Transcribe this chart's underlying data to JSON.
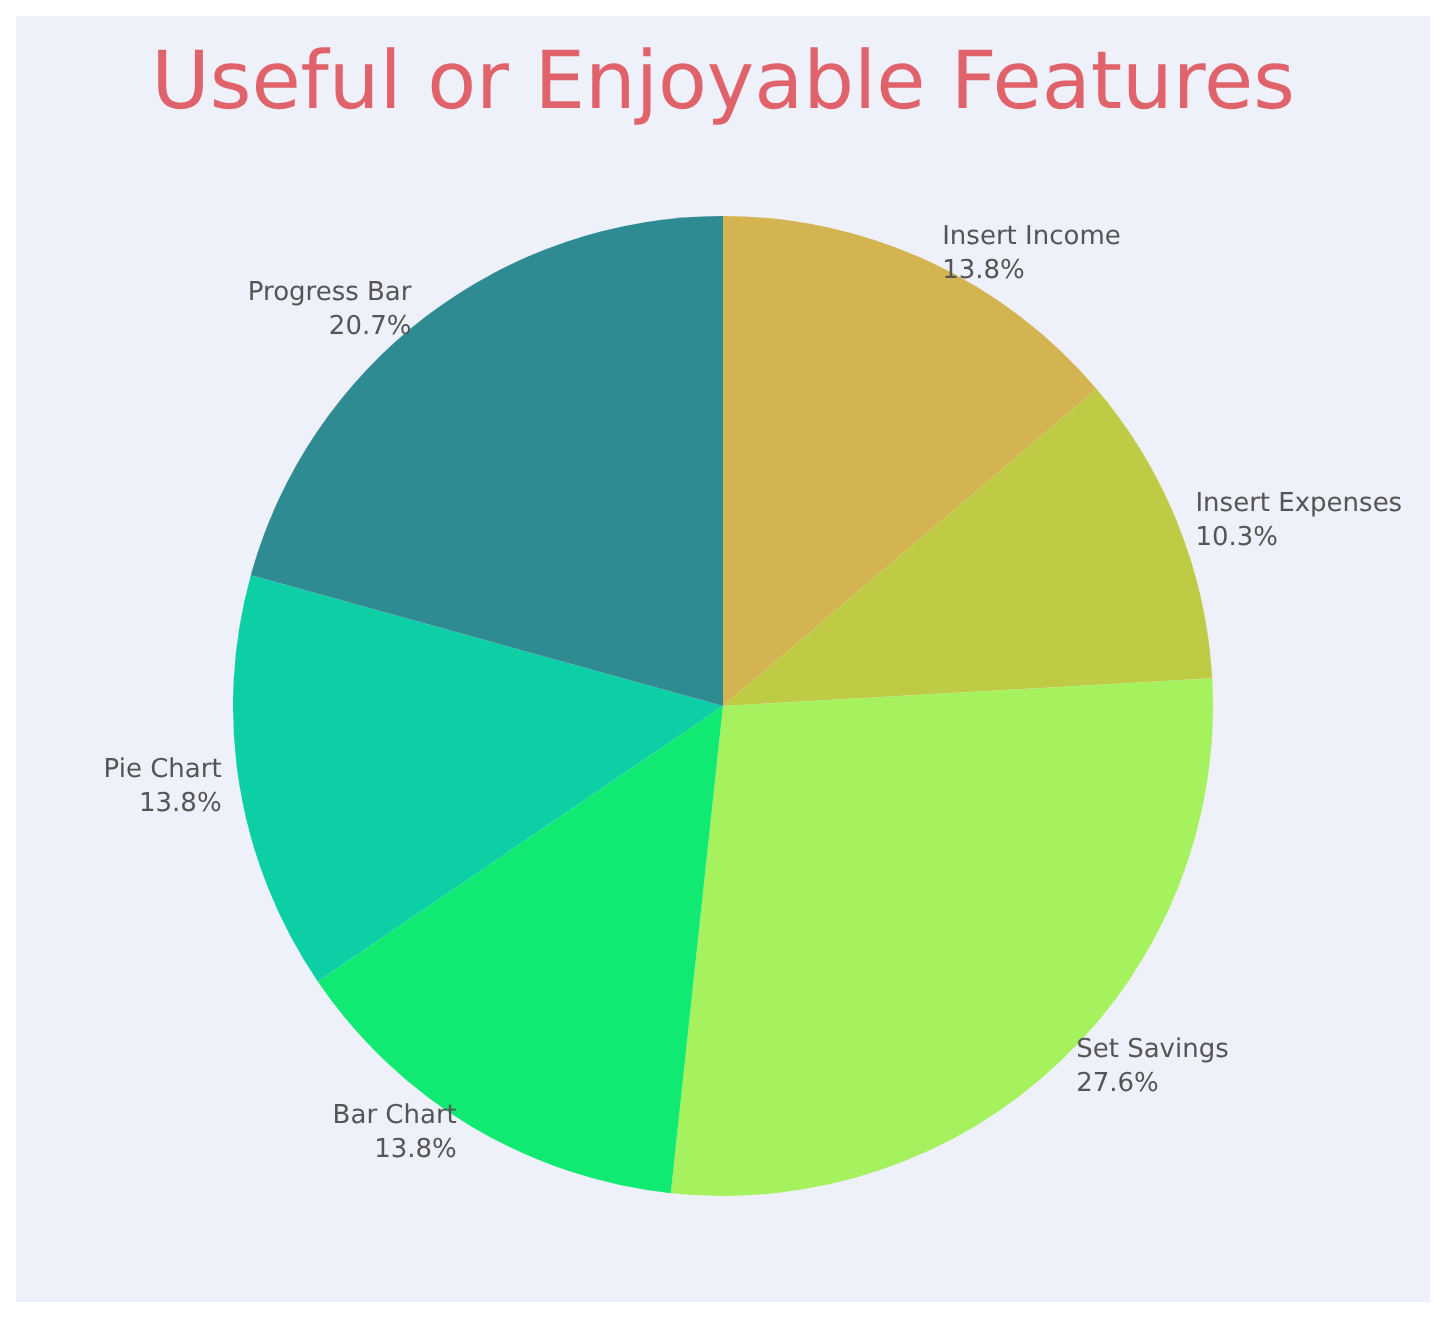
{
  "chart_data": {
    "type": "pie",
    "title": "Useful or Enjoyable Features",
    "categories": [
      "Insert Income",
      "Insert Expenses",
      "Set Savings",
      "Bar Chart",
      "Pie Chart",
      "Progress Bar"
    ],
    "values": [
      13.8,
      10.3,
      27.6,
      13.8,
      13.8,
      20.7
    ],
    "colors": [
      "#d3b450",
      "#c0cb45",
      "#a6f15e",
      "#10ea72",
      "#0ccfa6",
      "#2e8b92"
    ],
    "value_labels": [
      "13.8%",
      "10.3%",
      "27.6%",
      "13.8%",
      "13.8%",
      "20.7%"
    ],
    "legend": false
  }
}
